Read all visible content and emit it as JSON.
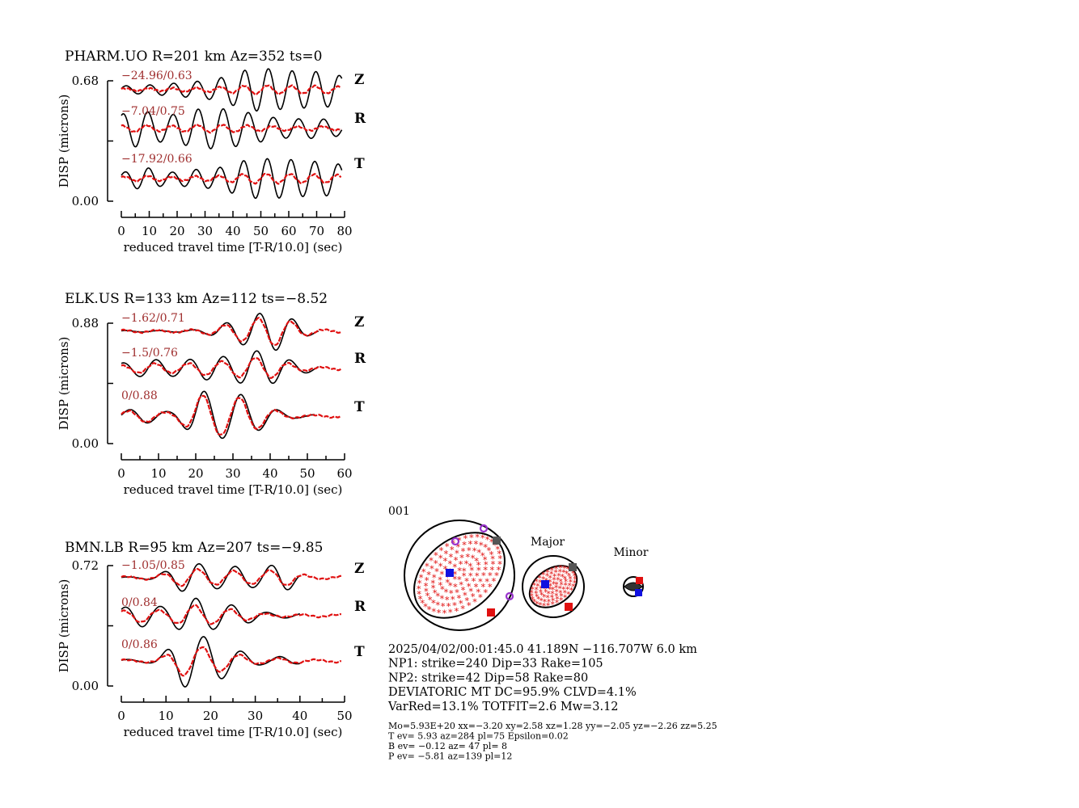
{
  "colors": {
    "observed": "#000000",
    "synthetic": "#e01010",
    "fit_label": "#a03030",
    "t_axis": "#1010e0",
    "p_axis": "#e01010",
    "b_axis": "#555555",
    "station": "#9933cc"
  },
  "chart_data": [
    {
      "type": "line",
      "title": "PHARM.UO R=201 km Az=352 ts=0",
      "xlabel": "reduced travel time [T-R/10.0] (sec)",
      "ylabel": "DISP (microns)",
      "y_ticks": [
        "0.00",
        "0.68"
      ],
      "x_ticks": [
        "0",
        "10",
        "20",
        "30",
        "40",
        "50",
        "60",
        "70",
        "80"
      ],
      "xlim": [
        0,
        80
      ],
      "traces": [
        {
          "component": "Z",
          "fit_label": "−24.96/0.63"
        },
        {
          "component": "R",
          "fit_label": "−7.04/0.75"
        },
        {
          "component": "T",
          "fit_label": "−17.92/0.66"
        }
      ]
    },
    {
      "type": "line",
      "title": "ELK.US R=133 km Az=112 ts=−8.52",
      "xlabel": "reduced travel time [T-R/10.0] (sec)",
      "ylabel": "DISP (microns)",
      "y_ticks": [
        "0.00",
        "0.88"
      ],
      "x_ticks": [
        "0",
        "10",
        "20",
        "30",
        "40",
        "50",
        "60"
      ],
      "xlim": [
        0,
        60
      ],
      "traces": [
        {
          "component": "Z",
          "fit_label": "−1.62/0.71"
        },
        {
          "component": "R",
          "fit_label": "−1.5/0.76"
        },
        {
          "component": "T",
          "fit_label": "0/0.88"
        }
      ]
    },
    {
      "type": "line",
      "title": "BMN.LB R=95 km Az=207 ts=−9.85",
      "xlabel": "reduced travel time [T-R/10.0] (sec)",
      "ylabel": "DISP (microns)",
      "y_ticks": [
        "0.00",
        "0.72"
      ],
      "x_ticks": [
        "0",
        "10",
        "20",
        "30",
        "40",
        "50"
      ],
      "xlim": [
        0,
        50
      ],
      "traces": [
        {
          "component": "Z",
          "fit_label": "−1.05/0.85"
        },
        {
          "component": "R",
          "fit_label": "0/0.84"
        },
        {
          "component": "T",
          "fit_label": "0/0.86"
        }
      ]
    }
  ],
  "mechanism": {
    "id": "001",
    "major_label": "Major",
    "minor_label": "Minor",
    "lines": [
      "2025/04/02/00:01:45.0 41.189N −116.707W 6.0 km",
      "NP1: strike=240 Dip=33 Rake=105",
      "NP2: strike=42 Dip=58 Rake=80",
      "DEVIATORIC MT DC=95.9% CLVD=4.1%",
      "VarRed=13.1% TOTFIT=2.6 Mw=3.12"
    ],
    "small_lines": [
      "Mo=5.93E+20 xx=−3.20 xy=2.58 xz=1.28 yy=−2.05 yz=−2.26 zz=5.25",
      "T ev=  5.93 az=284 pl=75 Epsilon=0.02",
      "B ev= −0.12 az= 47 pl=  8",
      "P ev= −5.81 az=139 pl=12"
    ]
  }
}
